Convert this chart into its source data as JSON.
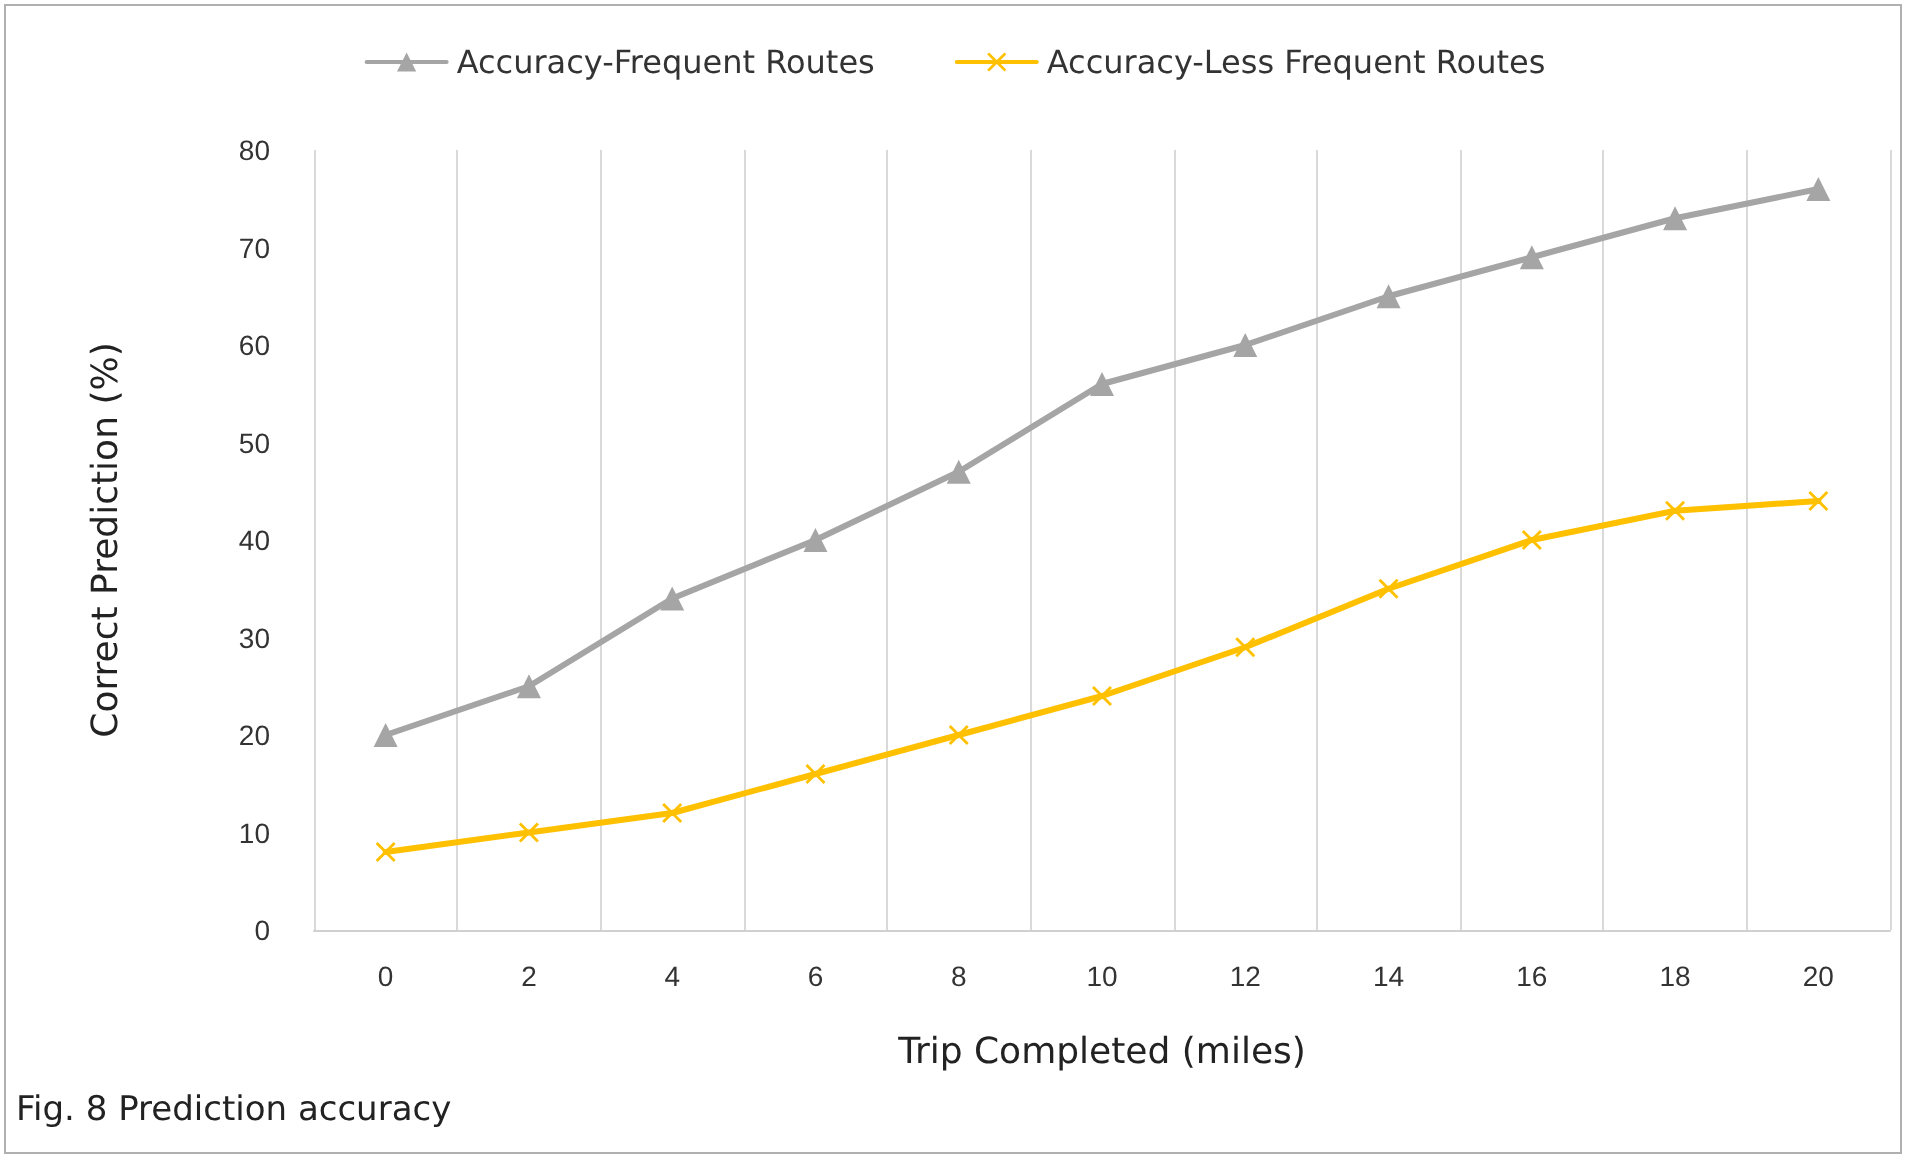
{
  "chart_data": {
    "type": "line",
    "xlabel": "Trip Completed (miles)",
    "ylabel": "Correct Prediction (%)",
    "categories": [
      "0",
      "2",
      "4",
      "6",
      "8",
      "10",
      "12",
      "14",
      "16",
      "18",
      "20"
    ],
    "series": [
      {
        "name": "Accuracy-Frequent Routes",
        "color": "#a5a5a5",
        "marker": "triangle",
        "values": [
          20,
          25,
          34,
          40,
          47,
          56,
          60,
          65,
          69,
          73,
          76
        ]
      },
      {
        "name": "Accuracy-Less Frequent Routes",
        "color": "#ffc000",
        "marker": "cross",
        "values": [
          8,
          10,
          12,
          16,
          20,
          24,
          29,
          35,
          40,
          43,
          44
        ]
      }
    ],
    "ylim": [
      0,
      80
    ],
    "yticks": [
      0,
      10,
      20,
      30,
      40,
      50,
      60,
      70,
      80
    ],
    "grid": "x",
    "legend": "top",
    "line_style": "solid",
    "annotations": [
      "Fig. 8 Prediction accuracy"
    ]
  }
}
